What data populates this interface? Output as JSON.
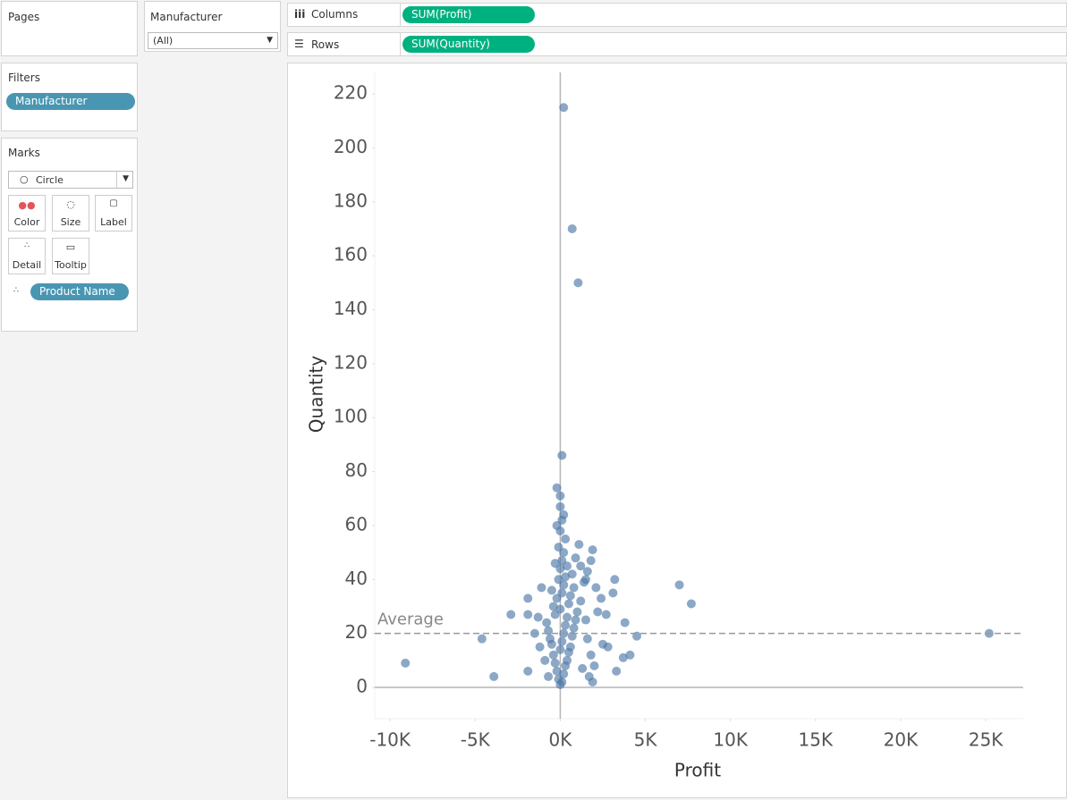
{
  "ui": {
    "pages": "Pages",
    "manufacturer_filter": {
      "title": "Manufacturer",
      "value": "(All)"
    },
    "columns": {
      "label": "Columns",
      "pill": "SUM(Profit)"
    },
    "rows": {
      "label": "Rows",
      "pill": "SUM(Quantity)"
    },
    "filters": {
      "title": "Filters",
      "pill": "Manufacturer"
    },
    "marks": {
      "title": "Marks",
      "mark_type": "Circle",
      "buttons": [
        "Color",
        "Size",
        "Label",
        "Detail",
        "Tooltip"
      ],
      "detail_pill": "Product Name"
    }
  },
  "chart_data": {
    "type": "scatter",
    "x_label": "Profit",
    "y_label": "Quantity",
    "color": "#4e79a7",
    "x": [
      200,
      700,
      1050,
      100,
      -9100,
      -4600,
      -3900,
      7000,
      7700,
      25200,
      4500,
      3800,
      3200,
      3100,
      1100,
      1900,
      -200,
      0,
      200,
      0,
      3700,
      4100,
      3300,
      -1900,
      -1900,
      -2900,
      -1900,
      2100,
      1600,
      1800,
      0,
      100,
      -100,
      200,
      -200,
      300,
      -300,
      400,
      -400,
      500,
      0,
      600,
      -500,
      100,
      -600,
      700,
      200,
      -700,
      800,
      300,
      -800,
      900,
      400,
      -300,
      1000,
      0,
      -400,
      500,
      1200,
      -200,
      600,
      100,
      -500,
      800,
      200,
      1400,
      -100,
      300,
      700,
      0,
      400,
      -300,
      100,
      900,
      200,
      -100,
      300,
      0,
      -200,
      100,
      -1500,
      -1200,
      -900,
      1500,
      1800,
      2000,
      1600,
      2500,
      2200,
      2700,
      -1100,
      1300,
      1700,
      1500,
      1900,
      -700,
      -1300,
      2400,
      2800,
      1200
    ],
    "values": [
      215,
      170,
      150,
      86,
      9,
      18,
      4,
      38,
      31,
      20,
      19,
      24,
      40,
      35,
      53,
      51,
      74,
      71,
      64,
      67,
      11,
      12,
      6,
      6,
      33,
      27,
      27,
      37,
      43,
      47,
      1,
      2,
      3,
      5,
      6,
      8,
      9,
      10,
      12,
      13,
      14,
      15,
      16,
      17,
      18,
      19,
      20,
      21,
      22,
      23,
      24,
      25,
      26,
      27,
      28,
      29,
      30,
      31,
      32,
      33,
      34,
      35,
      36,
      37,
      38,
      39,
      40,
      41,
      42,
      44,
      45,
      46,
      47,
      48,
      50,
      52,
      55,
      58,
      60,
      62,
      20,
      15,
      10,
      25,
      12,
      8,
      18,
      16,
      28,
      27,
      37,
      7,
      4,
      40,
      2,
      4,
      26,
      33,
      15,
      45
    ],
    "xlim": [
      -10900,
      27200
    ],
    "ylim": [
      -11.6,
      228
    ],
    "xticks": [
      {
        "value": -10000,
        "label": "-10K"
      },
      {
        "value": -5000,
        "label": "-5K"
      },
      {
        "value": 0,
        "label": "0K"
      },
      {
        "value": 5000,
        "label": "5K"
      },
      {
        "value": 10000,
        "label": "10K"
      },
      {
        "value": 15000,
        "label": "15K"
      },
      {
        "value": 20000,
        "label": "20K"
      },
      {
        "value": 25000,
        "label": "25K"
      }
    ],
    "yticks": [
      0,
      20,
      40,
      60,
      80,
      100,
      120,
      140,
      160,
      180,
      200,
      220
    ],
    "reference_line": {
      "label": "Average",
      "value": 20
    }
  }
}
